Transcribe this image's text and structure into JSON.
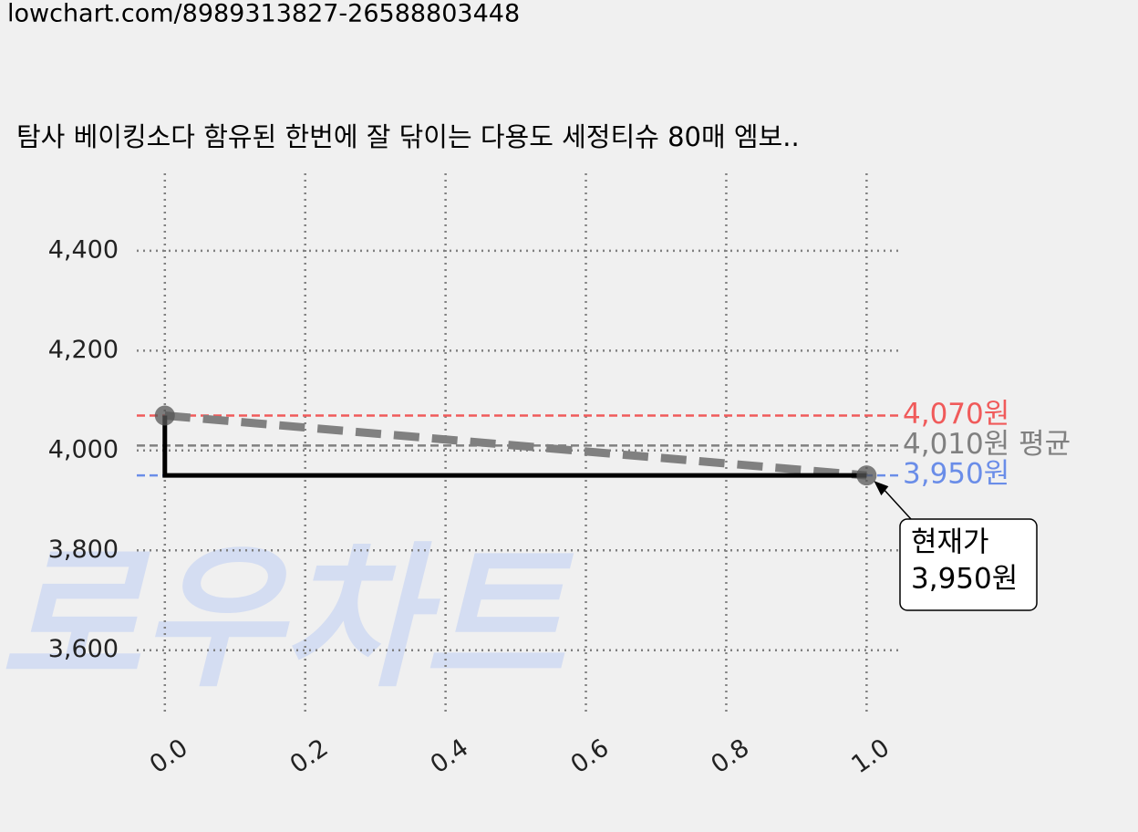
{
  "header": "lowchart.com/8989313827-26588803448",
  "chart_data": {
    "type": "line",
    "title": "탐사 베이킹소다 함유된 한번에 잘 닦이는 다용도 세정티슈 80매 엠보..",
    "watermark": "로우차트",
    "x": [
      0,
      1
    ],
    "series": [
      {
        "values": [
          4070,
          3950
        ],
        "color": "#000000",
        "step": "pre",
        "trend_color": "#808080",
        "marker_color": "#555555"
      }
    ],
    "reference_lines": [
      {
        "value": 4070,
        "label": "4,070원",
        "color": "#f05a5a"
      },
      {
        "value": 4010,
        "label": "4,010원 평균",
        "color": "#808080"
      },
      {
        "value": 3950,
        "label": "3,950원",
        "color": "#6a8de8"
      }
    ],
    "annotation": {
      "lines": [
        "현재가",
        "3,950원"
      ],
      "x": 1,
      "y": 3950
    },
    "xlim": [
      -0.04,
      1.045
    ],
    "ylim": [
      3468,
      4555
    ],
    "xticks": [
      {
        "value": 0,
        "label": "0.0"
      },
      0.2,
      0.4,
      0.6,
      0.8,
      {
        "value": 1,
        "label": "1.0"
      }
    ],
    "yticks": [
      {
        "value": 3600,
        "label": "3,600"
      },
      {
        "value": 3800,
        "label": "3,800"
      },
      {
        "value": 4000,
        "label": "4,000"
      },
      {
        "value": 4200,
        "label": "4,200"
      },
      {
        "value": 4400,
        "label": "4,400"
      }
    ],
    "grid": true
  }
}
